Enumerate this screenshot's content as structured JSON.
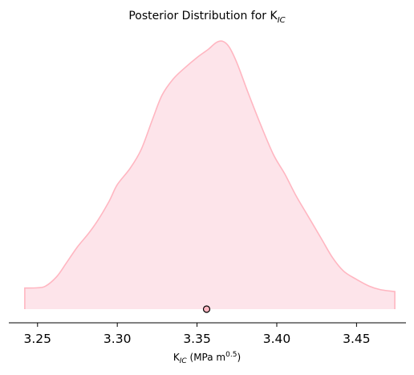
{
  "chart_data": {
    "type": "area",
    "title": {
      "main": "Posterior Distribution for K",
      "subscript": "IC"
    },
    "xlabel": {
      "main": "K",
      "subscript": "IC",
      "units": " (MPa m",
      "superscript": "0.5",
      "close": ")"
    },
    "xlim": [
      3.232,
      3.481
    ],
    "xticks": [
      3.25,
      3.3,
      3.35,
      3.4,
      3.45
    ],
    "xtick_labels": [
      "3.25",
      "3.30",
      "3.35",
      "3.40",
      "3.45"
    ],
    "y_axis_visible": false,
    "grid": false,
    "fill_color": "#fde4ea",
    "line_color": "#ffb6c1",
    "marker": {
      "x": 3.356,
      "edge_color": "#000000",
      "face_color": "#ffb6c1"
    },
    "density": {
      "x": [
        3.242,
        3.25,
        3.255,
        3.262,
        3.268,
        3.275,
        3.282,
        3.288,
        3.295,
        3.3,
        3.308,
        3.315,
        3.322,
        3.328,
        3.335,
        3.342,
        3.35,
        3.357,
        3.362,
        3.366,
        3.37,
        3.375,
        3.382,
        3.39,
        3.398,
        3.405,
        3.412,
        3.42,
        3.428,
        3.435,
        3.442,
        3.45,
        3.458,
        3.465,
        3.474
      ],
      "y": [
        0.078,
        0.079,
        0.085,
        0.12,
        0.17,
        0.23,
        0.28,
        0.33,
        0.4,
        0.46,
        0.52,
        0.59,
        0.7,
        0.79,
        0.85,
        0.89,
        0.93,
        0.96,
        0.985,
        0.99,
        0.97,
        0.91,
        0.8,
        0.68,
        0.57,
        0.5,
        0.42,
        0.34,
        0.26,
        0.19,
        0.14,
        0.11,
        0.085,
        0.072,
        0.065
      ]
    }
  }
}
